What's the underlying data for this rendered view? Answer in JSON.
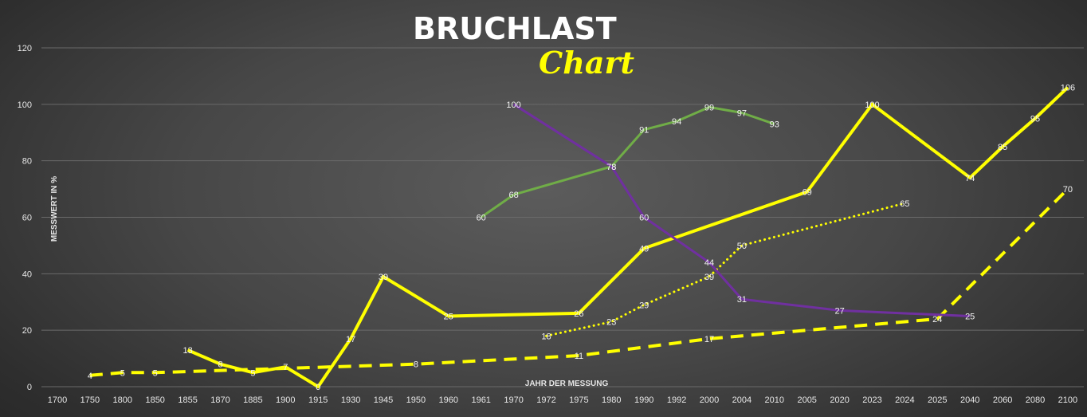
{
  "title": "BRUCHLAST",
  "subtitle": "Chart",
  "chart_data": {
    "type": "line",
    "title": "BRUCHLAST",
    "subtitle": "Chart",
    "xlabel": "JAHR DER MESSUNG",
    "ylabel": "MESSWERT IN %",
    "ylim": [
      0,
      120
    ],
    "yticks": [
      0,
      20,
      40,
      60,
      80,
      100,
      120
    ],
    "grid": "horizontal",
    "categories": [
      "1700",
      "1750",
      "1800",
      "1850",
      "1855",
      "1870",
      "1885",
      "1900",
      "1915",
      "1930",
      "1945",
      "1950",
      "1960",
      "1961",
      "1970",
      "1972",
      "1975",
      "1980",
      "1990",
      "1992",
      "2000",
      "2004",
      "2010",
      "2005",
      "2020",
      "2023",
      "2024",
      "2025",
      "2040",
      "2060",
      "2080",
      "2100"
    ],
    "series": [
      {
        "style": "solid",
        "color": "#ffff00",
        "width": 4,
        "points": [
          {
            "x": "1855",
            "y": 13
          },
          {
            "x": "1870",
            "y": 8
          },
          {
            "x": "1885",
            "y": 5
          },
          {
            "x": "1900",
            "y": 7
          },
          {
            "x": "1915",
            "y": 0
          },
          {
            "x": "1930",
            "y": 17
          },
          {
            "x": "1945",
            "y": 39
          },
          {
            "x": "1960",
            "y": 25
          },
          {
            "x": "1975",
            "y": 26
          },
          {
            "x": "1990",
            "y": 49
          },
          {
            "x": "2005",
            "y": 69
          },
          {
            "x": "2023",
            "y": 100
          },
          {
            "x": "2040",
            "y": 74
          },
          {
            "x": "2060",
            "y": 85
          },
          {
            "x": "2080",
            "y": 95
          },
          {
            "x": "2100",
            "y": 106
          }
        ]
      },
      {
        "style": "dashed",
        "color": "#ffff00",
        "width": 4,
        "points": [
          {
            "x": "1750",
            "y": 4
          },
          {
            "x": "1800",
            "y": 5
          },
          {
            "x": "1850",
            "y": 5
          },
          {
            "x": "1950",
            "y": 8
          },
          {
            "x": "1975",
            "y": 11
          },
          {
            "x": "2000",
            "y": 17
          },
          {
            "x": "2025",
            "y": 24
          },
          {
            "x": "2100",
            "y": 70
          }
        ]
      },
      {
        "style": "dotted",
        "color": "#ffff00",
        "width": 3,
        "points": [
          {
            "x": "1972",
            "y": 18
          },
          {
            "x": "1980",
            "y": 23
          },
          {
            "x": "1990",
            "y": 29
          },
          {
            "x": "2000",
            "y": 39
          },
          {
            "x": "2004",
            "y": 50
          },
          {
            "x": "2024",
            "y": 65
          }
        ]
      },
      {
        "style": "solid",
        "color": "#70ad47",
        "width": 3,
        "points": [
          {
            "x": "1961",
            "y": 60
          },
          {
            "x": "1970",
            "y": 68
          },
          {
            "x": "1980",
            "y": 78
          },
          {
            "x": "1990",
            "y": 91
          },
          {
            "x": "1992",
            "y": 94
          },
          {
            "x": "2000",
            "y": 99
          },
          {
            "x": "2004",
            "y": 97
          },
          {
            "x": "2010",
            "y": 93
          }
        ]
      },
      {
        "style": "solid",
        "color": "#7030a0",
        "width": 3,
        "points": [
          {
            "x": "1970",
            "y": 100
          },
          {
            "x": "1980",
            "y": 78
          },
          {
            "x": "1990",
            "y": 60
          },
          {
            "x": "2000",
            "y": 44
          },
          {
            "x": "2004",
            "y": 31
          },
          {
            "x": "2020",
            "y": 27
          },
          {
            "x": "2040",
            "y": 25
          }
        ]
      }
    ]
  }
}
